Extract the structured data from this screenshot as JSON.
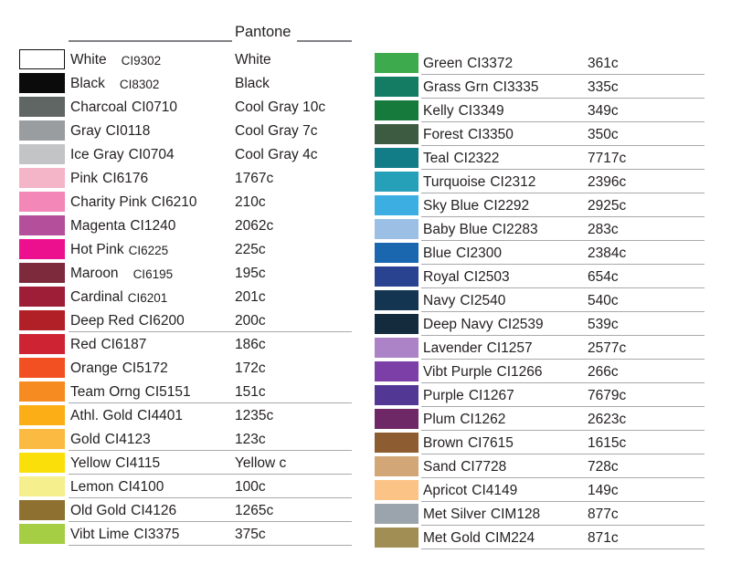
{
  "theme": {
    "background": "#ffffff",
    "text_color": "#231f20",
    "header_rule_color": "#808285",
    "row_underline_color": "#a7a9ac"
  },
  "header": {
    "pantone_label": "Pantone"
  },
  "left_rows": [
    {
      "name": "White",
      "ci": "CI9302",
      "pantone": "White",
      "color": "#ffffff",
      "border": true,
      "ci_small": true,
      "ci_gap": true
    },
    {
      "name": "Black",
      "ci": "CI8302",
      "pantone": "Black",
      "color": "#0b0b0b",
      "ci_small": true,
      "ci_gap": true
    },
    {
      "name": "Charcoal",
      "ci": "CI0710",
      "pantone": "Cool Gray 10c",
      "color": "#5f6663"
    },
    {
      "name": "Gray",
      "ci": "CI0118",
      "pantone": "Cool Gray 7c",
      "color": "#9a9da0"
    },
    {
      "name": "Ice Gray",
      "ci": "CI0704",
      "pantone": "Cool Gray 4c",
      "color": "#c2c4c6"
    },
    {
      "name": "Pink",
      "ci": "CI6176",
      "pantone": "1767c",
      "color": "#f5b5c8"
    },
    {
      "name": "Charity Pink",
      "ci": "CI6210",
      "pantone": "210c",
      "color": "#f287b8"
    },
    {
      "name": "Magenta",
      "ci": "CI1240",
      "pantone": "2062c",
      "color": "#b4509b"
    },
    {
      "name": "Hot Pink",
      "ci": "CI6225",
      "pantone": "225c",
      "color": "#ec108f",
      "ci_small": true
    },
    {
      "name": "Maroon",
      "ci": "CI6195",
      "pantone": "195c",
      "color": "#7d2a3c",
      "ci_small": true,
      "ci_gap": true
    },
    {
      "name": "Cardinal",
      "ci": "CI6201",
      "pantone": "201c",
      "color": "#9e1e38",
      "ci_small": true
    },
    {
      "name": "Deep Red",
      "ci": "CI6200",
      "pantone": "200c",
      "color": "#b22027",
      "underline": true
    },
    {
      "name": "Red",
      "ci": "CI6187",
      "pantone": "186c",
      "color": "#cd2332"
    },
    {
      "name": "Orange",
      "ci": "CI5172",
      "pantone": "172c",
      "color": "#f25022"
    },
    {
      "name": "Team Orng",
      "ci": "CI5151",
      "pantone": "151c",
      "color": "#f68c21",
      "underline": true
    },
    {
      "name": "Athl. Gold",
      "ci": "CI4401",
      "pantone": "1235c",
      "color": "#fcae17"
    },
    {
      "name": "Gold",
      "ci": "CI4123",
      "pantone": "123c",
      "color": "#fbba41",
      "underline": true
    },
    {
      "name": "Yellow",
      "ci": "CI4115",
      "pantone": "Yellow c",
      "color": "#fbdf0a",
      "underline": true
    },
    {
      "name": "Lemon",
      "ci": "CI4100",
      "pantone": "100c",
      "color": "#f5ef8e",
      "underline": true
    },
    {
      "name": "Old Gold",
      "ci": "CI4126",
      "pantone": "1265c",
      "color": "#8e7031",
      "underline": true
    },
    {
      "name": "Vibt Lime",
      "ci": "CI3375",
      "pantone": "375c",
      "color": "#a5ce44",
      "underline": true
    }
  ],
  "right_rows": [
    {
      "name": "Green",
      "ci": "CI3372",
      "pantone": "361c",
      "color": "#3caa4d",
      "underline": true
    },
    {
      "name": "Grass Grn",
      "ci": "CI3335",
      "pantone": "335c",
      "color": "#137c63",
      "underline": true
    },
    {
      "name": "Kelly",
      "ci": "CI3349",
      "pantone": "349c",
      "color": "#177a3d",
      "underline": true
    },
    {
      "name": "Forest",
      "ci": "CI3350",
      "pantone": "350c",
      "color": "#3c5b41",
      "underline": true
    },
    {
      "name": "Teal",
      "ci": "CI2322",
      "pantone": "7717c",
      "color": "#127c87",
      "underline": true
    },
    {
      "name": "Turquoise",
      "ci": "CI2312",
      "pantone": "2396c",
      "color": "#26a0b8",
      "underline": true
    },
    {
      "name": "Sky Blue",
      "ci": "CI2292",
      "pantone": "2925c",
      "color": "#3caee2",
      "underline": true
    },
    {
      "name": "Baby Blue",
      "ci": "CI2283",
      "pantone": "283c",
      "color": "#9cbfe6",
      "underline": true
    },
    {
      "name": "Blue",
      "ci": "CI2300",
      "pantone": "2384c",
      "color": "#1a67b0",
      "underline": true
    },
    {
      "name": "Royal",
      "ci": "CI2503",
      "pantone": "654c",
      "color": "#2a4390",
      "underline": true
    },
    {
      "name": "Navy",
      "ci": "CI2540",
      "pantone": "540c",
      "color": "#133551",
      "underline": true
    },
    {
      "name": "Deep Navy",
      "ci": "CI2539",
      "pantone": "539c",
      "color": "#132b3d",
      "underline": true
    },
    {
      "name": "Lavender",
      "ci": "CI1257",
      "pantone": "2577c",
      "color": "#ab83c6",
      "underline": true
    },
    {
      "name": "Vibt Purple",
      "ci": "CI1266",
      "pantone": "266c",
      "color": "#7c3fa7",
      "underline": true
    },
    {
      "name": "Purple",
      "ci": "CI1267",
      "pantone": "7679c",
      "color": "#533795",
      "underline": true
    },
    {
      "name": "Plum",
      "ci": "CI1262",
      "pantone": "2623c",
      "color": "#6e2866",
      "underline": true
    },
    {
      "name": "Brown",
      "ci": "CI7615",
      "pantone": "1615c",
      "color": "#8d5c30",
      "underline": true
    },
    {
      "name": "Sand",
      "ci": "CI7728",
      "pantone": "728c",
      "color": "#d3a678",
      "underline": true
    },
    {
      "name": "Apricot",
      "ci": "CI4149",
      "pantone": "149c",
      "color": "#fcc386",
      "underline": true
    },
    {
      "name": "Met Silver",
      "ci": "CIM128",
      "pantone": "877c",
      "color": "#9ba3ad",
      "underline": true
    },
    {
      "name": "Met Gold",
      "ci": "CIM224",
      "pantone": "871c",
      "color": "#a18e55",
      "underline": true
    }
  ]
}
